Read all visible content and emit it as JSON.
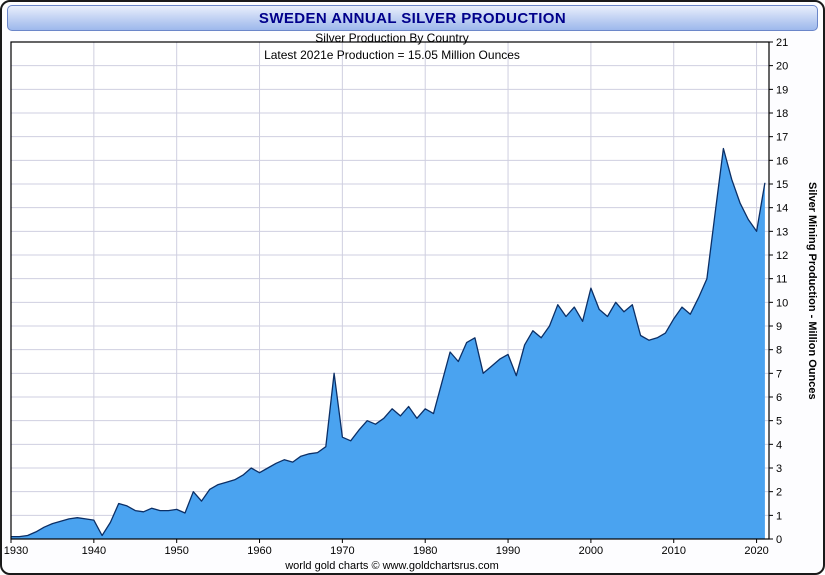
{
  "title_bar": {
    "title": "SWEDEN ANNUAL SILVER PRODUCTION"
  },
  "footer": {
    "credit": "world gold charts © www.goldchartsrus.com"
  },
  "chart_data": {
    "type": "area",
    "title": "Silver Production By Country",
    "annotation": "Latest 2021e Production = 15.05 Million Ounces",
    "ylabel": "Silver Mining Production - Million Ounces",
    "x_start": 1930,
    "x_end": 2021,
    "values": [
      0.1,
      0.1,
      0.15,
      0.3,
      0.5,
      0.65,
      0.75,
      0.85,
      0.9,
      0.85,
      0.8,
      0.15,
      0.7,
      1.5,
      1.4,
      1.2,
      1.15,
      1.3,
      1.2,
      1.2,
      1.25,
      1.1,
      2.0,
      1.6,
      2.1,
      2.3,
      2.4,
      2.5,
      2.7,
      3.0,
      2.8,
      3.0,
      3.2,
      3.35,
      3.25,
      3.5,
      3.6,
      3.65,
      3.9,
      7.0,
      4.3,
      4.15,
      4.6,
      5.0,
      4.85,
      5.1,
      5.5,
      5.2,
      5.6,
      5.1,
      5.5,
      5.3,
      6.6,
      7.9,
      7.5,
      8.3,
      8.5,
      7.0,
      7.3,
      7.6,
      7.8,
      6.9,
      8.2,
      8.8,
      8.5,
      9.0,
      9.9,
      9.4,
      9.8,
      9.2,
      10.6,
      9.7,
      9.4,
      10.0,
      9.6,
      9.9,
      8.6,
      8.4,
      8.5,
      8.7,
      9.3,
      9.8,
      9.5,
      10.2,
      11.0,
      13.8,
      16.5,
      15.2,
      14.2,
      13.5,
      13.0,
      15.05
    ],
    "x_ticks": [
      1930,
      1940,
      1950,
      1960,
      1970,
      1980,
      1990,
      2000,
      2010,
      2020
    ],
    "y_ticks": [
      0,
      1,
      2,
      3,
      4,
      5,
      6,
      7,
      8,
      9,
      10,
      11,
      12,
      13,
      14,
      15,
      16,
      17,
      18,
      19,
      20,
      21
    ],
    "xlim": [
      1930,
      2021.5
    ],
    "ylim": [
      0,
      21
    ],
    "legend": "none",
    "grid": true,
    "colors": {
      "fill": "#4aa3f0",
      "stroke": "#0b2f66",
      "grid": "#cfcfe0",
      "axis": "#000000",
      "title_text": "#00008b"
    }
  }
}
